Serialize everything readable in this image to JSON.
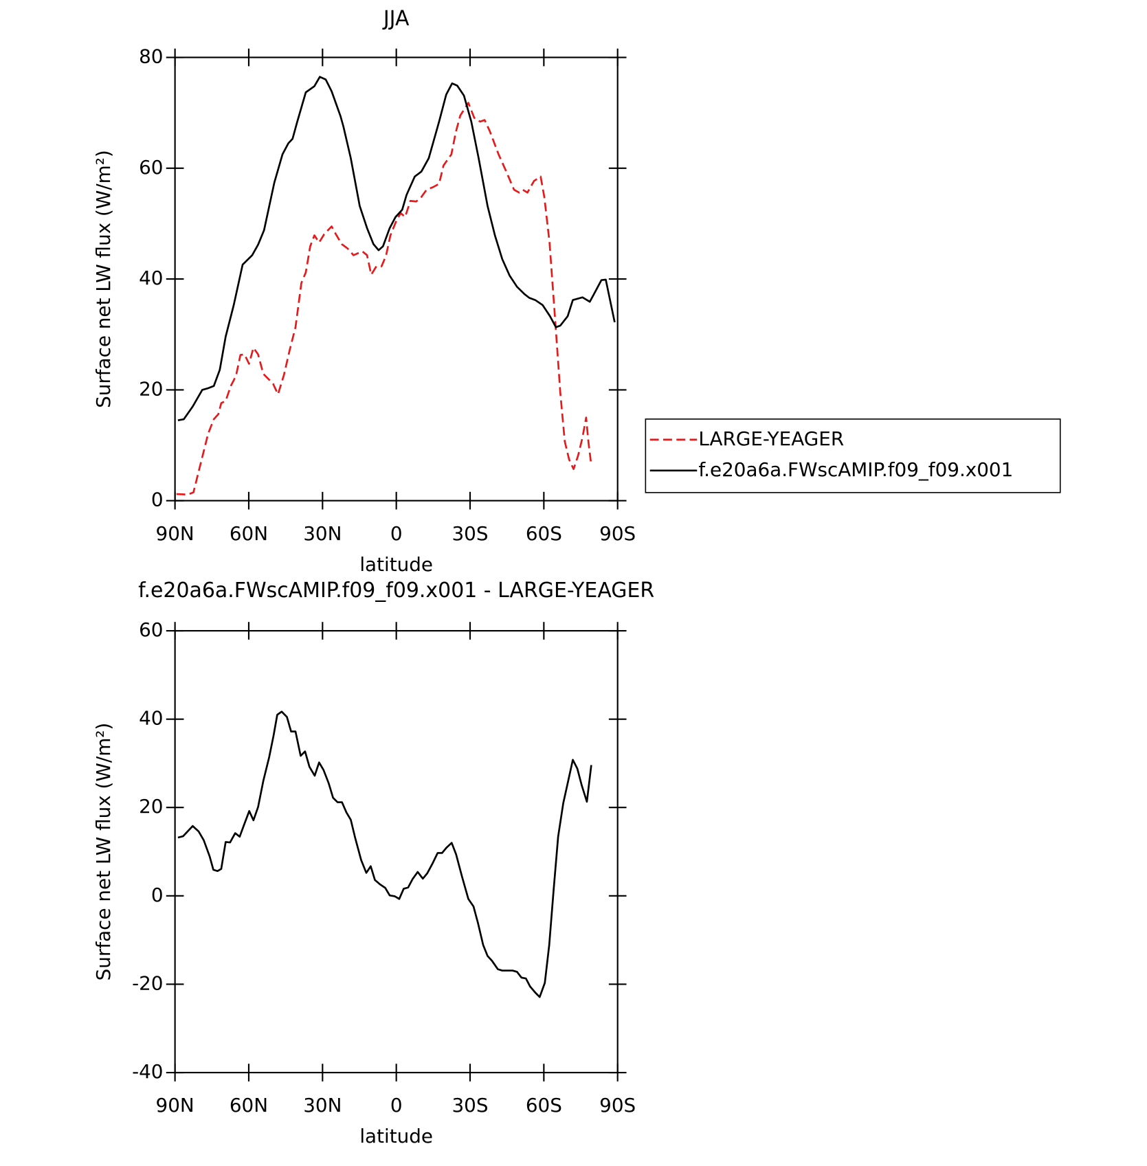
{
  "chart_data": [
    {
      "type": "line",
      "title": "JJA",
      "ylabel": "Surface net LW flux (W/m²)",
      "xlabel": "latitude",
      "xlim": [
        90,
        -90
      ],
      "ylim": [
        0,
        80
      ],
      "xticks": [
        {
          "value": 90,
          "label": "90N"
        },
        {
          "value": 60,
          "label": "60N"
        },
        {
          "value": 30,
          "label": "30N"
        },
        0,
        {
          "value": -30,
          "label": "30S"
        },
        {
          "value": -60,
          "label": "60S"
        },
        {
          "value": -90,
          "label": "90S"
        }
      ],
      "yticks": [
        0,
        20,
        40,
        60,
        80
      ],
      "legend": "outside-right",
      "series": [
        {
          "name": "LARGE-YEAGER",
          "color": "#e41a1c",
          "dash": true,
          "x": [
            89.4,
            84.9,
            82.5,
            79.5,
            76.5,
            74.2,
            72.4,
            71.2,
            69.4,
            67.3,
            65.2,
            63.4,
            61.7,
            59.9,
            58.1,
            56.2,
            54.1,
            52.1,
            50.1,
            48.1,
            45.7,
            43.3,
            41.0,
            38.6,
            36.8,
            35.0,
            33.3,
            31.4,
            29.3,
            26.3,
            24.6,
            22.2,
            19.8,
            17.4,
            13.8,
            11.9,
            10.2,
            8.1,
            6.0,
            4.2,
            2.4,
            0.0,
            -1.8,
            -3.6,
            -5.7,
            -8.1,
            -10.2,
            -12.3,
            -15.0,
            -17.4,
            -19.2,
            -22.4,
            -24.2,
            -26.0,
            -29.3,
            -31.7,
            -34.1,
            -35.9,
            -38.0,
            -41.6,
            -44.6,
            -47.9,
            -50.0,
            -51.5,
            -53.3,
            -56.0,
            -58.7,
            -60.2,
            -62.3,
            -64.7,
            -66.7,
            -68.5,
            -70.3,
            -72.1,
            -73.9,
            -75.7,
            -77.2,
            -78.1,
            -79.3
          ],
          "values": [
            1.2,
            1.1,
            1.5,
            6.8,
            12.1,
            14.7,
            15.6,
            17.6,
            18.0,
            20.7,
            22.5,
            26.3,
            26.4,
            24.7,
            27.6,
            26.4,
            22.9,
            22.0,
            21.1,
            19.2,
            22.7,
            27.3,
            31.3,
            39.3,
            41.2,
            45.9,
            47.9,
            46.6,
            48.1,
            49.5,
            48.1,
            46.3,
            45.5,
            44.3,
            45.0,
            44.3,
            40.8,
            42.3,
            42.3,
            44.2,
            47.9,
            50.5,
            51.9,
            51.2,
            54.1,
            54.0,
            54.8,
            56.1,
            56.6,
            57.2,
            60.5,
            62.5,
            66.5,
            69.5,
            71.8,
            69.1,
            68.4,
            68.7,
            66.7,
            62.5,
            59.5,
            56.1,
            55.6,
            56.1,
            55.6,
            57.7,
            58.5,
            54.8,
            46.6,
            32.0,
            19.4,
            10.7,
            7.4,
            5.7,
            8.1,
            11.4,
            15.0,
            10.7,
            6.4
          ]
        },
        {
          "name": "f.e20a6a.FWscAMIP.f09_f09.x001",
          "color": "#000000",
          "dash": false,
          "x": [
            88.8,
            86.4,
            82.8,
            78.9,
            76.5,
            74.2,
            71.8,
            69.4,
            66.1,
            62.5,
            58.6,
            56.2,
            53.8,
            49.6,
            46.3,
            43.9,
            42.2,
            40.4,
            36.8,
            33.3,
            31.1,
            28.7,
            26.3,
            22.7,
            21.5,
            18.5,
            14.9,
            11.9,
            9.3,
            7.2,
            5.4,
            2.7,
            0.3,
            -2.4,
            -4.2,
            -7.5,
            -10.2,
            -13.2,
            -17.4,
            -20.3,
            -22.7,
            -24.8,
            -27.5,
            -30.5,
            -33.5,
            -37.1,
            -40.1,
            -43.1,
            -46.1,
            -49.1,
            -52.1,
            -54.1,
            -56.5,
            -59.5,
            -62.5,
            -64.9,
            -66.7,
            -69.7,
            -71.8,
            -75.7,
            -78.7,
            -81.0,
            -83.4,
            -85.2,
            -88.8
          ],
          "values": [
            14.5,
            14.7,
            17.0,
            20.0,
            20.3,
            20.7,
            23.6,
            29.6,
            35.3,
            42.6,
            44.3,
            46.2,
            48.8,
            57.4,
            62.5,
            64.5,
            65.3,
            68.2,
            73.7,
            74.8,
            76.5,
            76.0,
            73.9,
            69.4,
            67.5,
            61.8,
            53.2,
            49.2,
            46.3,
            45.2,
            45.9,
            49.2,
            51.2,
            52.5,
            55.2,
            58.5,
            59.4,
            61.8,
            68.4,
            73.3,
            75.3,
            74.9,
            73.1,
            68.4,
            61.8,
            53.2,
            47.9,
            43.6,
            40.6,
            38.6,
            37.3,
            36.6,
            36.2,
            35.3,
            33.3,
            31.3,
            31.6,
            33.3,
            36.2,
            36.7,
            35.9,
            37.8,
            39.8,
            39.9,
            32.2
          ]
        }
      ]
    },
    {
      "type": "line",
      "title": "f.e20a6a.FWscAMIP.f09_f09.x001 - LARGE-YEAGER",
      "ylabel": "Surface net LW flux (W/m²)",
      "xlabel": "latitude",
      "xlim": [
        90,
        -90
      ],
      "ylim": [
        -40,
        60
      ],
      "xticks": [
        {
          "value": 90,
          "label": "90N"
        },
        {
          "value": 60,
          "label": "60N"
        },
        {
          "value": 30,
          "label": "30N"
        },
        0,
        {
          "value": -30,
          "label": "30S"
        },
        {
          "value": -60,
          "label": "60S"
        },
        {
          "value": -90,
          "label": "90S"
        }
      ],
      "yticks": [
        -40,
        -20,
        0,
        20,
        40,
        60
      ],
      "series": [
        {
          "color": "#000000",
          "dash": false,
          "x": [
            88.8,
            86.7,
            82.8,
            80.4,
            78.3,
            75.9,
            74.4,
            72.7,
            71.2,
            69.4,
            67.6,
            65.5,
            63.7,
            61.9,
            59.8,
            58.1,
            56.2,
            54.1,
            51.7,
            49.9,
            48.4,
            46.6,
            44.5,
            42.8,
            41.0,
            38.9,
            37.1,
            35.3,
            33.2,
            31.4,
            29.6,
            27.5,
            25.7,
            23.9,
            22.1,
            20.3,
            18.5,
            16.7,
            14.3,
            12.2,
            10.4,
            8.7,
            6.6,
            4.5,
            2.7,
            0.6,
            -1.2,
            -3.0,
            -4.8,
            -6.6,
            -8.7,
            -10.8,
            -12.6,
            -14.7,
            -16.8,
            -18.6,
            -20.4,
            -22.5,
            -24.3,
            -26.7,
            -29.3,
            -31.4,
            -33.2,
            -35.3,
            -37.1,
            -38.9,
            -41.3,
            -43.1,
            -45.2,
            -47.3,
            -49.1,
            -50.9,
            -52.7,
            -54.4,
            -56.5,
            -58.3,
            -60.4,
            -62.2,
            -64.0,
            -65.8,
            -67.9,
            -69.7,
            -71.8,
            -73.6,
            -75.4,
            -77.5,
            -79.3
          ],
          "values": [
            13.2,
            13.5,
            15.8,
            14.6,
            12.6,
            8.9,
            5.9,
            5.6,
            6.1,
            12.2,
            12.1,
            14.2,
            13.4,
            16.1,
            19.2,
            17.1,
            20.1,
            26.0,
            31.4,
            36.3,
            41.0,
            41.7,
            40.5,
            37.2,
            37.2,
            31.7,
            32.7,
            29.2,
            27.2,
            30.2,
            28.5,
            25.5,
            22.2,
            21.2,
            21.2,
            18.9,
            17.2,
            13.1,
            8.1,
            5.2,
            6.7,
            3.6,
            2.6,
            1.8,
            0.1,
            -0.1,
            -0.7,
            1.6,
            1.9,
            3.8,
            5.4,
            3.9,
            5.1,
            7.3,
            9.7,
            9.7,
            10.9,
            12.0,
            9.4,
            4.4,
            -0.7,
            -2.4,
            -6.1,
            -11.1,
            -13.6,
            -14.7,
            -16.6,
            -16.9,
            -16.9,
            -16.9,
            -17.2,
            -18.5,
            -18.7,
            -20.5,
            -21.9,
            -22.9,
            -19.7,
            -11.1,
            1.4,
            13.4,
            21.0,
            25.5,
            30.8,
            28.8,
            25.0,
            21.3,
            29.6
          ]
        }
      ]
    }
  ]
}
